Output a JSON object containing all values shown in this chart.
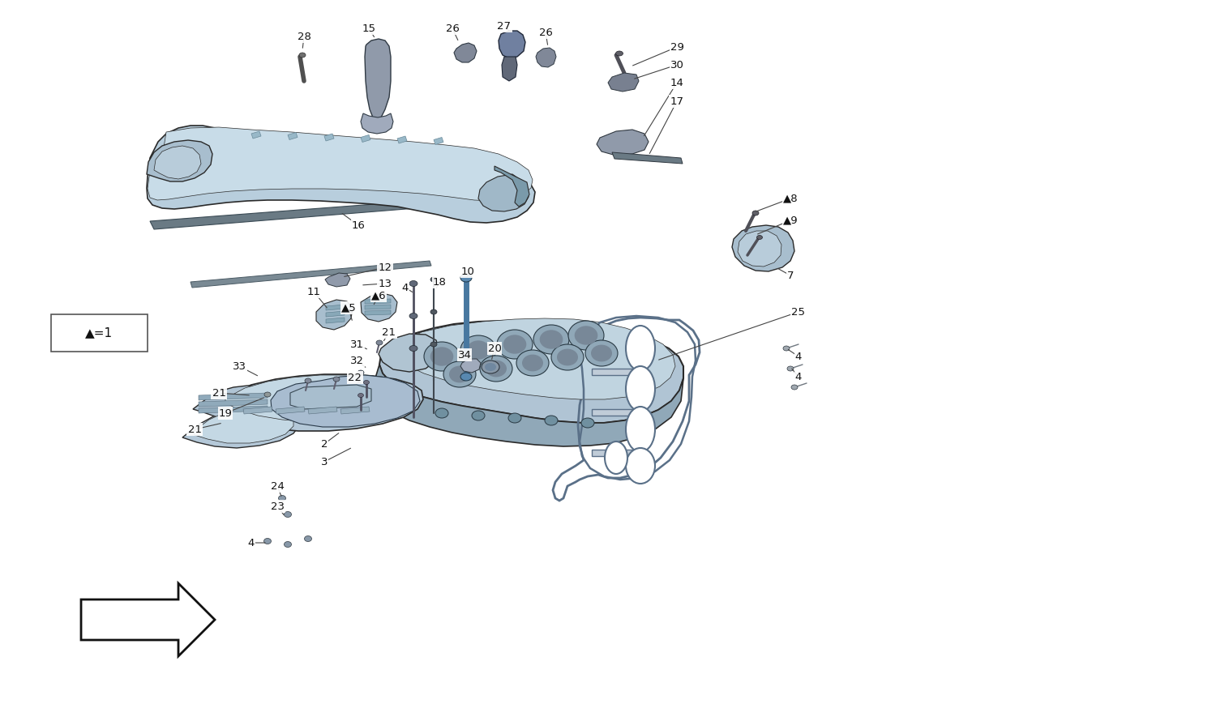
{
  "background_color": "#ffffff",
  "main_blue": "#b8cedd",
  "dark_blue": "#8aaabb",
  "light_blue": "#ccdde8",
  "edge_color": "#2a2a2a",
  "label_color": "#111111",
  "line_color": "#333333",
  "legend_text": "▲=1",
  "parts": {
    "cam_cover": {
      "color": "#b8cedd",
      "edge": "#2a2a2a"
    },
    "cylinder_head": {
      "color": "#adc4d4",
      "edge": "#2a2a2a"
    },
    "gasket": {
      "color": "#c0d0dc",
      "edge": "#4a6070"
    }
  }
}
